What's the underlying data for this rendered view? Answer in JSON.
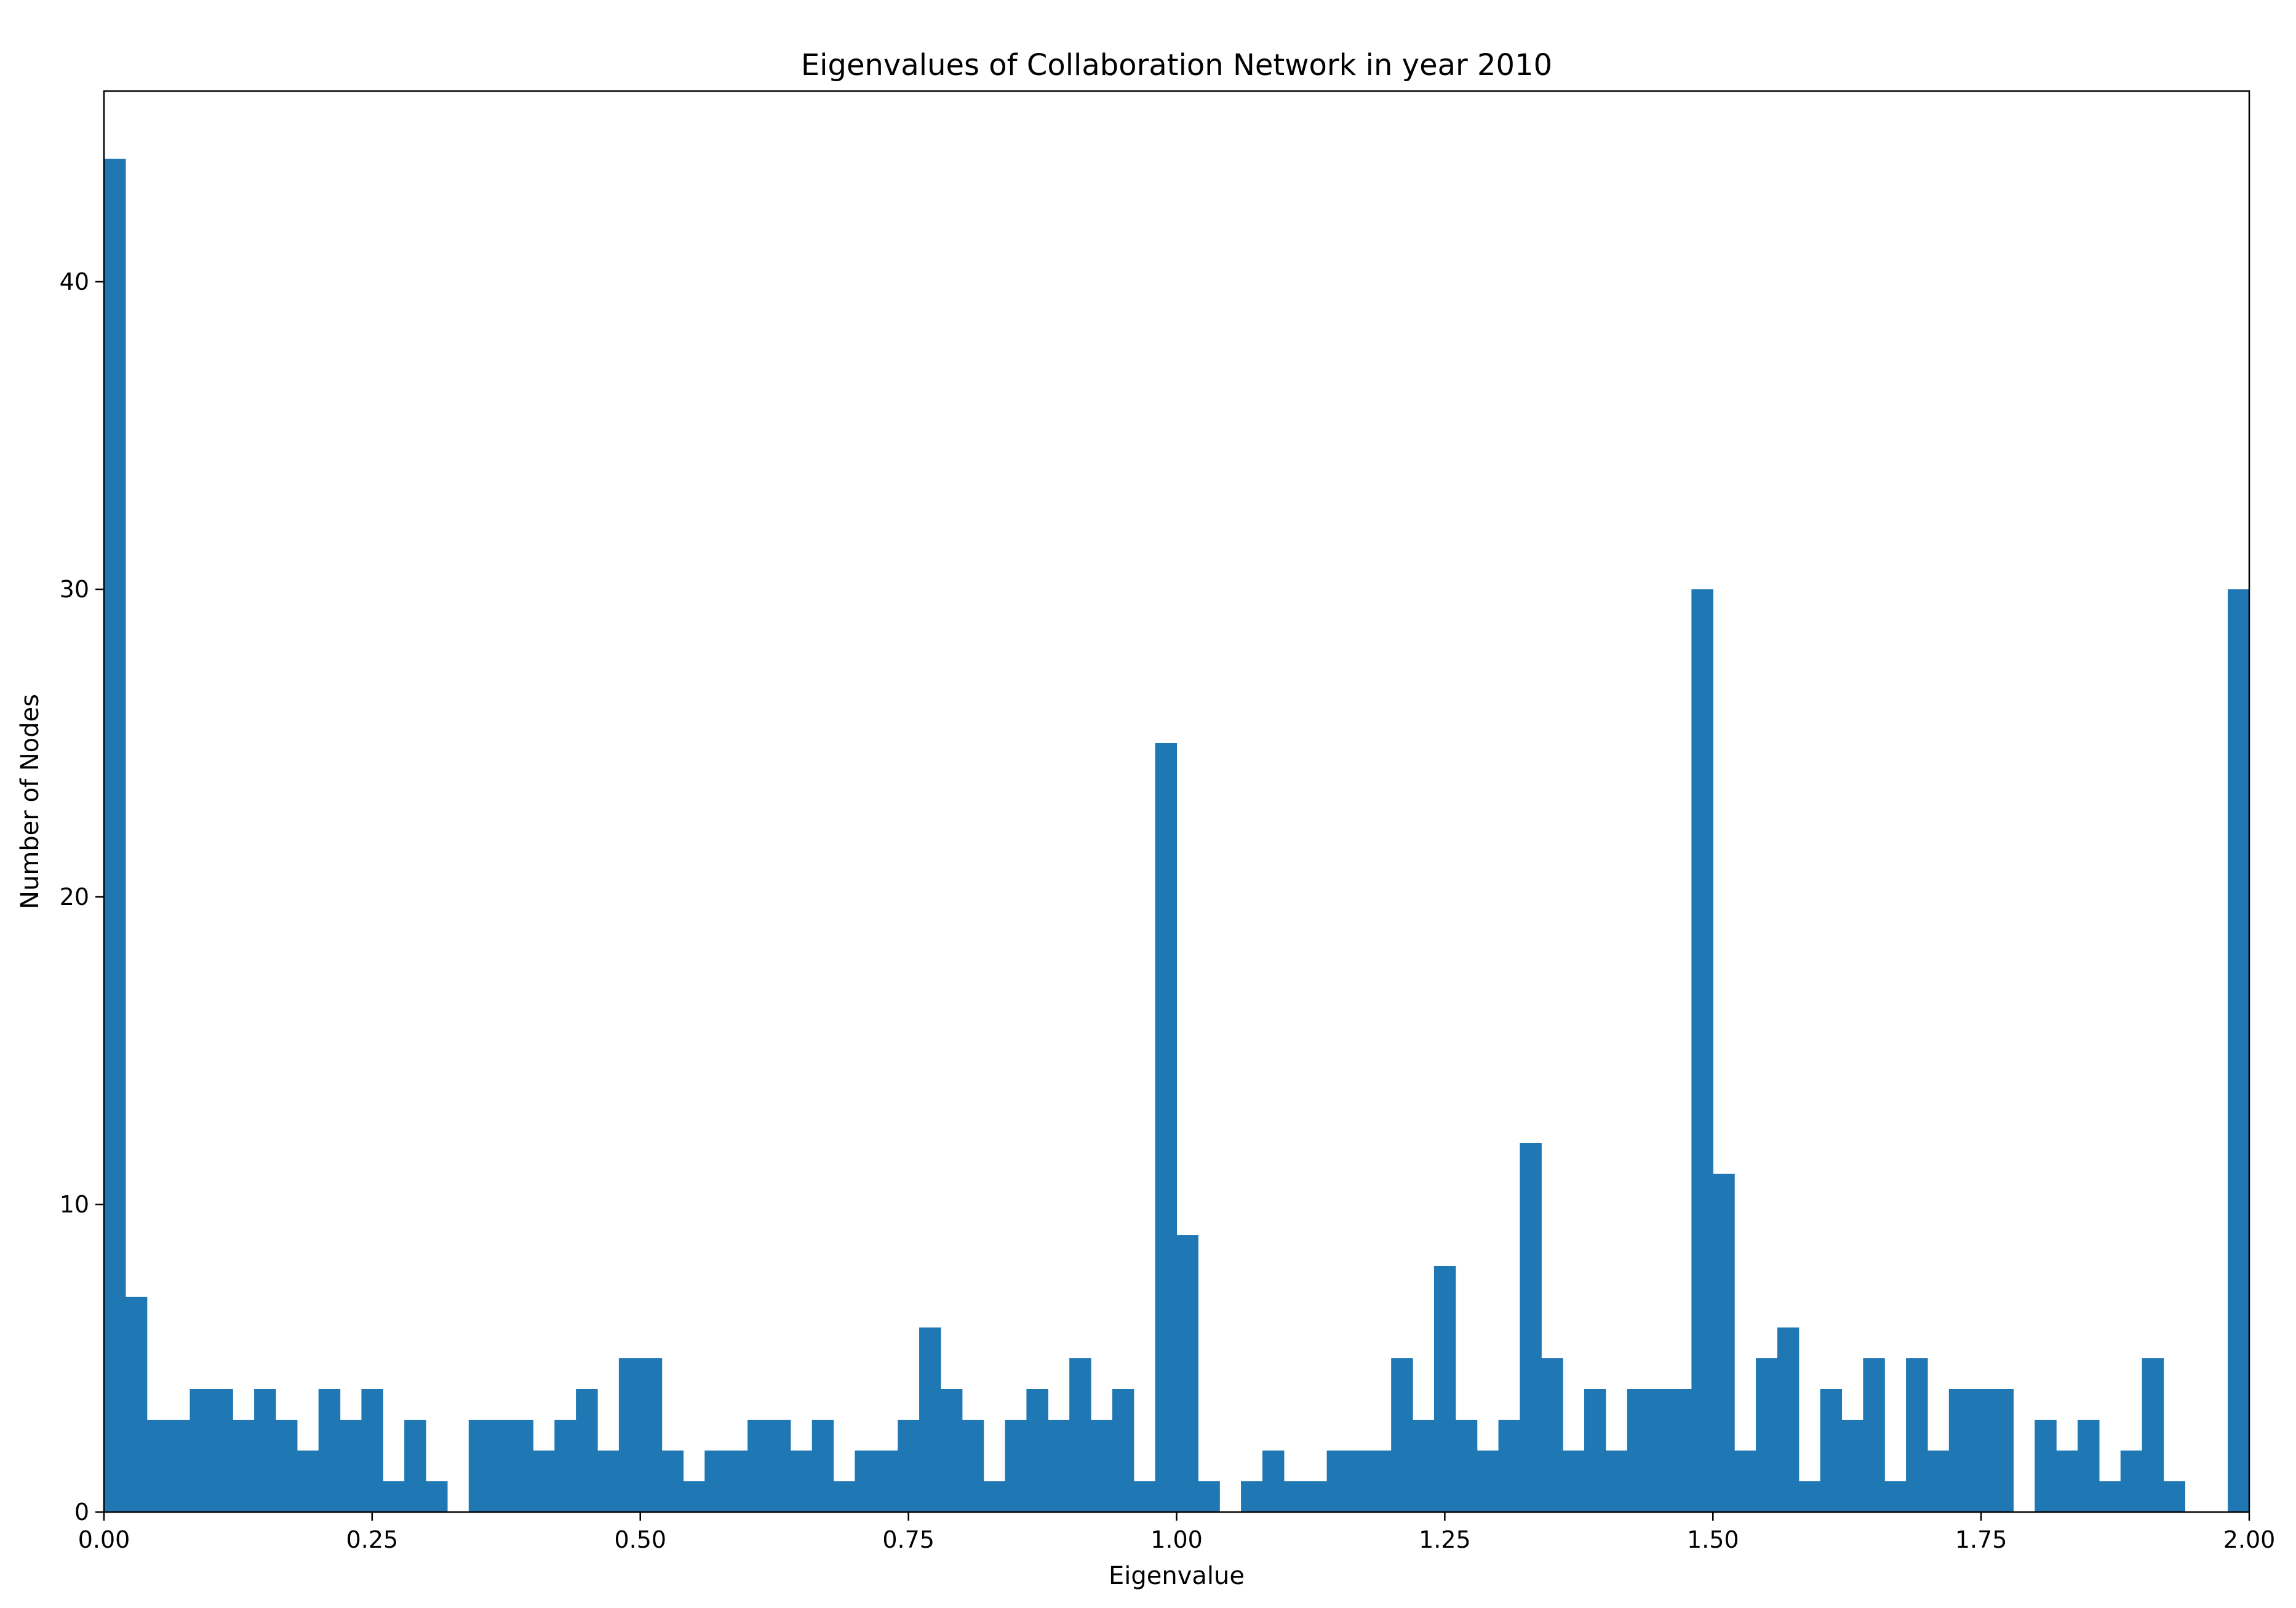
{
  "chart_data": {
    "type": "bar",
    "title": "Eigenvalues of Collaboration Network in year 2010",
    "xlabel": "Eigenvalue",
    "ylabel": "Number of Nodes",
    "xlim": [
      0,
      2
    ],
    "ylim": [
      0,
      46.2
    ],
    "bin_width": 0.02,
    "bin_start": 0,
    "color": "#1f77b4",
    "grid": false,
    "xticks": [
      "0.00",
      "0.25",
      "0.50",
      "0.75",
      "1.00",
      "1.25",
      "1.50",
      "1.75",
      "2.00"
    ],
    "yticks": [
      "0",
      "10",
      "20",
      "30",
      "40"
    ],
    "values": [
      44,
      7,
      3,
      3,
      4,
      4,
      3,
      4,
      3,
      2,
      4,
      3,
      4,
      1,
      3,
      1,
      0,
      3,
      3,
      3,
      2,
      3,
      4,
      2,
      5,
      5,
      2,
      1,
      2,
      2,
      3,
      3,
      2,
      3,
      1,
      2,
      2,
      3,
      6,
      4,
      3,
      1,
      3,
      4,
      3,
      5,
      3,
      4,
      1,
      25,
      9,
      1,
      0,
      1,
      2,
      1,
      1,
      2,
      2,
      2,
      5,
      3,
      8,
      3,
      2,
      3,
      12,
      5,
      2,
      4,
      2,
      4,
      4,
      4,
      30,
      11,
      2,
      5,
      6,
      1,
      4,
      3,
      5,
      1,
      5,
      2,
      4,
      4,
      4,
      0,
      3,
      2,
      3,
      1,
      2,
      5,
      1,
      0,
      0,
      30
    ]
  }
}
